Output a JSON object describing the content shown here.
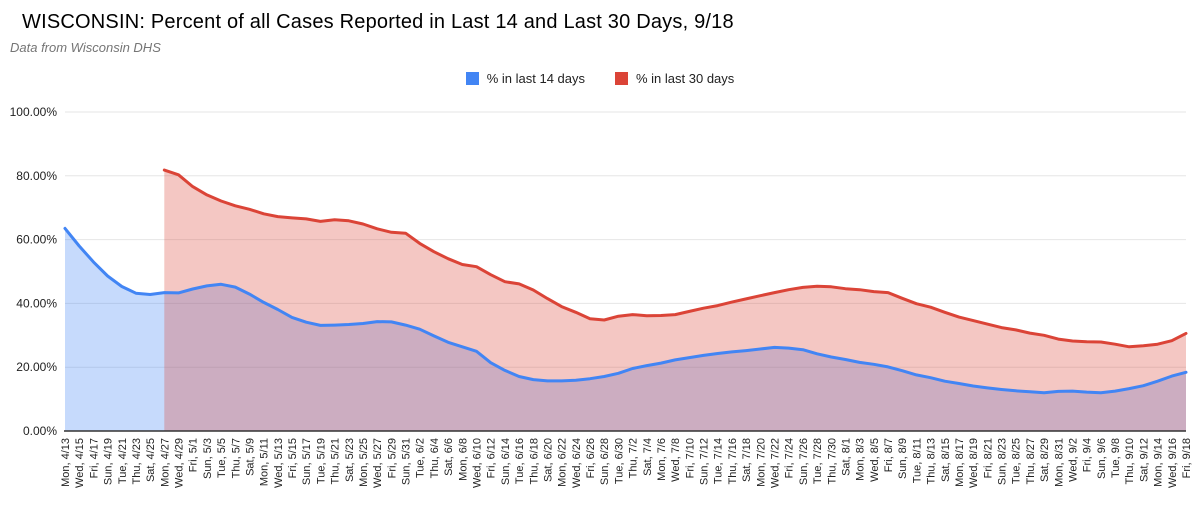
{
  "chart_data": {
    "type": "area",
    "title": "WISCONSIN: Percent of all Cases Reported in Last 14 and Last 30 Days, 9/18",
    "subtitle": "Data from Wisconsin DHS",
    "xlabel": "",
    "ylabel": "",
    "ylim": [
      0,
      100
    ],
    "grid": true,
    "legend_position": "top-center",
    "axis_color": "#333333",
    "gridline_color": "#e6e6e6",
    "tick_label_color": "#222222",
    "y_ticks": [
      {
        "value": 0,
        "label": "0.00%"
      },
      {
        "value": 20,
        "label": "20.00%"
      },
      {
        "value": 40,
        "label": "40.00%"
      },
      {
        "value": 60,
        "label": "60.00%"
      },
      {
        "value": 80,
        "label": "80.00%"
      },
      {
        "value": 100,
        "label": "100.00%"
      }
    ],
    "categories": [
      "Mon, 4/13",
      "Wed, 4/15",
      "Fri, 4/17",
      "Sun, 4/19",
      "Tue, 4/21",
      "Thu, 4/23",
      "Sat, 4/25",
      "Mon, 4/27",
      "Wed, 4/29",
      "Fri, 5/1",
      "Sun, 5/3",
      "Tue, 5/5",
      "Thu, 5/7",
      "Sat, 5/9",
      "Mon, 5/11",
      "Wed, 5/13",
      "Fri, 5/15",
      "Sun, 5/17",
      "Tue, 5/19",
      "Thu, 5/21",
      "Sat, 5/23",
      "Mon, 5/25",
      "Wed, 5/27",
      "Fri, 5/29",
      "Sun, 5/31",
      "Tue, 6/2",
      "Thu, 6/4",
      "Sat, 6/6",
      "Mon, 6/8",
      "Wed, 6/10",
      "Fri, 6/12",
      "Sun, 6/14",
      "Tue, 6/16",
      "Thu, 6/18",
      "Sat, 6/20",
      "Mon, 6/22",
      "Wed, 6/24",
      "Fri, 6/26",
      "Sun, 6/28",
      "Tue, 6/30",
      "Thu, 7/2",
      "Sat, 7/4",
      "Mon, 7/6",
      "Wed, 7/8",
      "Fri, 7/10",
      "Sun, 7/12",
      "Tue, 7/14",
      "Thu, 7/16",
      "Sat, 7/18",
      "Mon, 7/20",
      "Wed, 7/22",
      "Fri, 7/24",
      "Sun, 7/26",
      "Tue, 7/28",
      "Thu, 7/30",
      "Sat, 8/1",
      "Mon, 8/3",
      "Wed, 8/5",
      "Fri, 8/7",
      "Sun, 8/9",
      "Tue, 8/11",
      "Thu, 8/13",
      "Sat, 8/15",
      "Mon, 8/17",
      "Wed, 8/19",
      "Fri, 8/21",
      "Sun, 8/23",
      "Tue, 8/25",
      "Thu, 8/27",
      "Sat, 8/29",
      "Mon, 8/31",
      "Wed, 9/2",
      "Fri, 9/4",
      "Sun, 9/6",
      "Tue, 9/8",
      "Thu, 9/10",
      "Sat, 9/12",
      "Mon, 9/14",
      "Wed, 9/16",
      "Fri, 9/18"
    ],
    "series": [
      {
        "name": "% in last 14 days",
        "color": "#4285f4",
        "fill": "rgba(66,133,244,0.30)",
        "values": [
          63.5,
          58.0,
          53.0,
          48.6,
          45.3,
          43.2,
          42.8,
          43.4,
          43.3,
          44.5,
          45.5,
          46.0,
          45.1,
          42.9,
          40.3,
          38.1,
          35.6,
          34.1,
          33.1,
          33.2,
          33.4,
          33.7,
          34.3,
          34.2,
          33.2,
          31.9,
          29.8,
          27.8,
          26.4,
          25.0,
          21.4,
          19.0,
          17.1,
          16.1,
          15.7,
          15.7,
          15.9,
          16.4,
          17.1,
          18.1,
          19.6,
          20.5,
          21.3,
          22.3,
          23.0,
          23.7,
          24.3,
          24.8,
          25.2,
          25.7,
          26.2,
          26.0,
          25.5,
          24.2,
          23.2,
          22.4,
          21.5,
          20.9,
          20.1,
          18.9,
          17.6,
          16.7,
          15.6,
          14.9,
          14.1,
          13.5,
          13.0,
          12.6,
          12.3,
          12.0,
          12.4,
          12.5,
          12.2,
          12.0,
          12.5,
          13.3,
          14.2,
          15.6,
          17.2,
          18.4
        ]
      },
      {
        "name": "% in last 30 days",
        "color": "#db4437",
        "fill": "rgba(219,68,55,0.30)",
        "values": [
          null,
          null,
          null,
          null,
          null,
          null,
          null,
          81.8,
          80.3,
          76.6,
          74.0,
          72.1,
          70.6,
          69.5,
          68.1,
          67.2,
          66.8,
          66.5,
          65.7,
          66.2,
          65.9,
          64.9,
          63.4,
          62.3,
          62.0,
          58.8,
          56.2,
          54.0,
          52.2,
          51.5,
          49.0,
          46.8,
          46.1,
          44.2,
          41.5,
          39.0,
          37.2,
          35.2,
          34.8,
          36.0,
          36.5,
          36.1,
          36.2,
          36.5,
          37.5,
          38.5,
          39.3,
          40.4,
          41.4,
          42.4,
          43.4,
          44.3,
          45.0,
          45.4,
          45.2,
          44.6,
          44.3,
          43.7,
          43.4,
          41.6,
          39.9,
          38.8,
          37.2,
          35.7,
          34.6,
          33.5,
          32.4,
          31.7,
          30.7,
          30.0,
          28.8,
          28.2,
          28.0,
          27.9,
          27.2,
          26.4,
          26.7,
          27.2,
          28.3,
          30.6
        ]
      }
    ]
  }
}
